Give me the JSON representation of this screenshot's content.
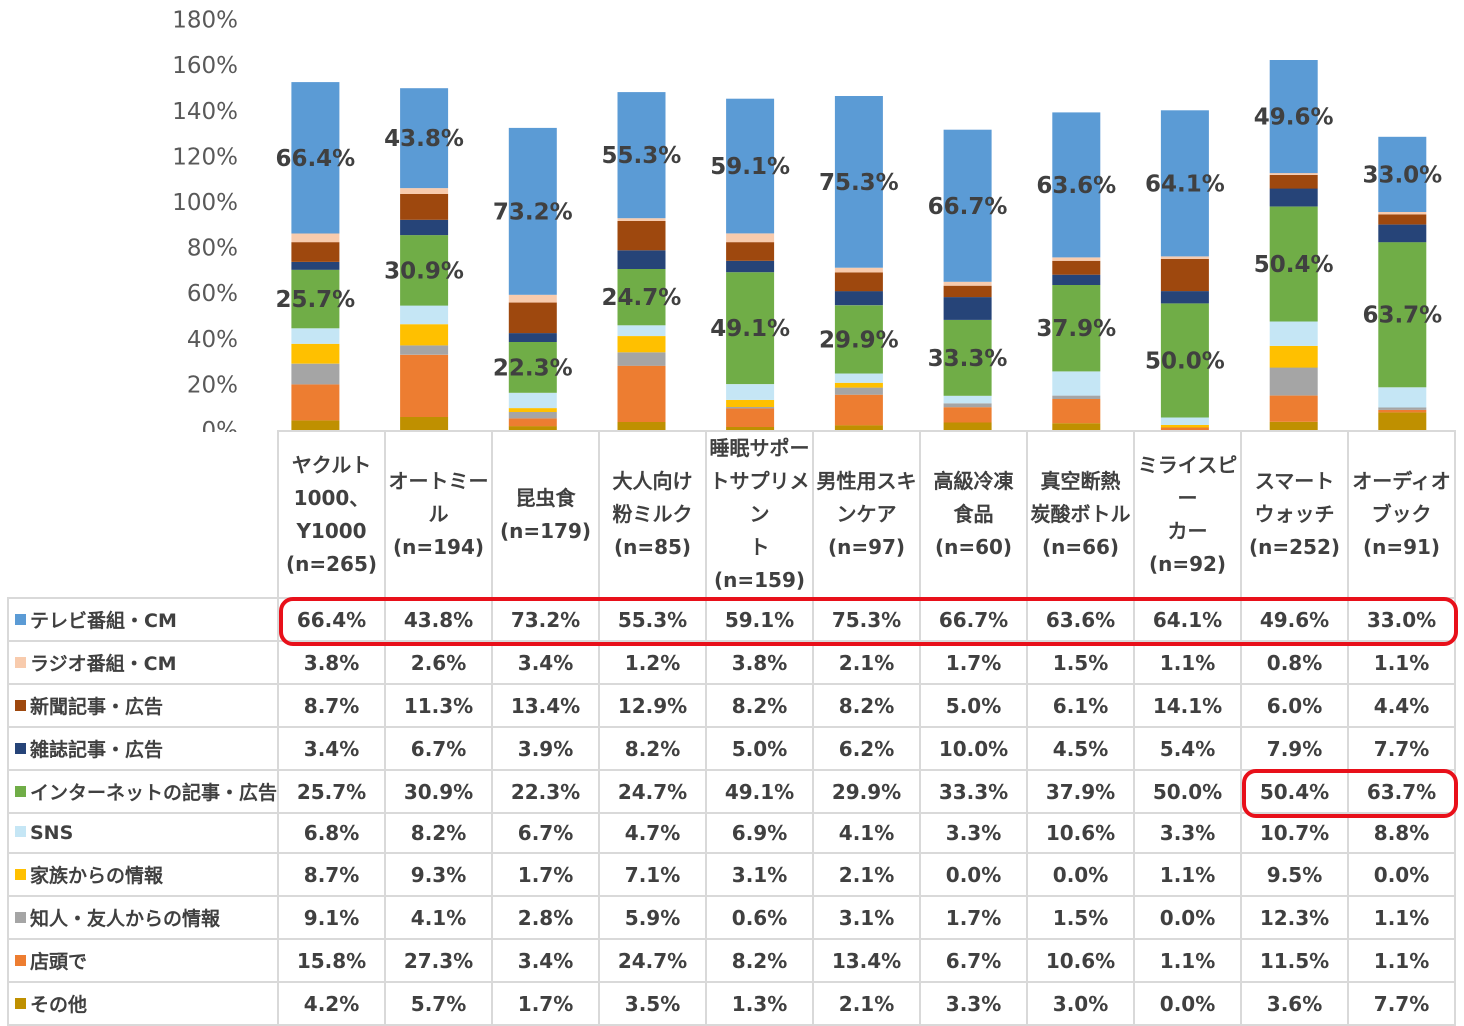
{
  "chart_data": {
    "type": "bar",
    "stacked": true,
    "ylim": [
      0,
      180
    ],
    "ytick_values": [
      0,
      20,
      40,
      60,
      80,
      100,
      120,
      140,
      160,
      180
    ],
    "ytick_labels": [
      "0%",
      "20%",
      "40%",
      "60%",
      "80%",
      "100%",
      "120%",
      "140%",
      "160%",
      "180%"
    ],
    "categories": [
      [
        "ヤクルト",
        "1000、",
        "Y1000",
        "(n=265)"
      ],
      [
        "オートミール",
        "(n=194)"
      ],
      [
        "昆虫食",
        "(n=179)"
      ],
      [
        "大人向け",
        "粉ミルク",
        "(n=85)"
      ],
      [
        "睡眠サポー",
        "トサプリメン",
        "ト",
        "(n=159)"
      ],
      [
        "男性用スキ",
        "ンケア",
        "(n=97)"
      ],
      [
        "高級冷凍",
        "食品",
        "(n=60)"
      ],
      [
        "真空断熱",
        "炭酸ボトル",
        "(n=66)"
      ],
      [
        "ミライスピー",
        "カー",
        "(n=92)"
      ],
      [
        "スマート",
        "ウォッチ",
        "(n=252)"
      ],
      [
        "オーディオ",
        "ブック",
        "(n=91)"
      ]
    ],
    "series": [
      {
        "name": "その他",
        "color": "#bf9000",
        "values": [
          4.2,
          5.7,
          1.7,
          3.5,
          1.3,
          2.1,
          3.3,
          3.0,
          0.0,
          3.6,
          7.7
        ]
      },
      {
        "name": "店頭で",
        "color": "#ed7d31",
        "values": [
          15.8,
          27.3,
          3.4,
          24.7,
          8.2,
          13.4,
          6.7,
          10.6,
          1.1,
          11.5,
          1.1
        ]
      },
      {
        "name": "知人・友人からの情報",
        "color": "#a5a5a5",
        "values": [
          9.1,
          4.1,
          2.8,
          5.9,
          0.6,
          3.1,
          1.7,
          1.5,
          0.0,
          12.3,
          1.1
        ]
      },
      {
        "name": "家族からの情報",
        "color": "#ffc000",
        "values": [
          8.7,
          9.3,
          1.7,
          7.1,
          3.1,
          2.1,
          0.0,
          0.0,
          1.1,
          9.5,
          0.0
        ]
      },
      {
        "name": "SNS",
        "color": "#c5e6f5",
        "values": [
          6.8,
          8.2,
          6.7,
          4.7,
          6.9,
          4.1,
          3.3,
          10.6,
          3.3,
          10.7,
          8.8
        ]
      },
      {
        "name": "インターネットの記事・広告",
        "color": "#70ad47",
        "values": [
          25.7,
          30.9,
          22.3,
          24.7,
          49.1,
          29.9,
          33.3,
          37.9,
          50.0,
          50.4,
          63.7
        ]
      },
      {
        "name": "雑誌記事・広告",
        "color": "#264478",
        "values": [
          3.4,
          6.7,
          3.9,
          8.2,
          5.0,
          6.2,
          10.0,
          4.5,
          5.4,
          7.9,
          7.7
        ]
      },
      {
        "name": "新聞記事・広告",
        "color": "#9e480e",
        "values": [
          8.7,
          11.3,
          13.4,
          12.9,
          8.2,
          8.2,
          5.0,
          6.1,
          14.1,
          6.0,
          4.4
        ]
      },
      {
        "name": "ラジオ番組・CM",
        "color": "#f8cbad",
        "values": [
          3.8,
          2.6,
          3.4,
          1.2,
          3.8,
          2.1,
          1.7,
          1.5,
          1.1,
          0.8,
          1.1
        ]
      },
      {
        "name": "テレビ番組・CM",
        "color": "#5b9bd5",
        "values": [
          66.4,
          43.8,
          73.2,
          55.3,
          59.1,
          75.3,
          66.7,
          63.6,
          64.1,
          49.6,
          33.0
        ]
      }
    ],
    "labeled_series": [
      "テレビ番組・CM",
      "インターネットの記事・広告"
    ],
    "table_row_order": [
      "テレビ番組・CM",
      "ラジオ番組・CM",
      "新聞記事・広告",
      "雑誌記事・広告",
      "インターネットの記事・広告",
      "SNS",
      "家族からの情報",
      "知人・友人からの情報",
      "店頭で",
      "その他"
    ],
    "highlights": [
      {
        "series": "テレビ番組・CM",
        "from_category": 0,
        "to_category": 10
      },
      {
        "series": "インターネットの記事・広告",
        "from_category": 9,
        "to_category": 10
      }
    ],
    "highlight_color": "#e8101a"
  }
}
